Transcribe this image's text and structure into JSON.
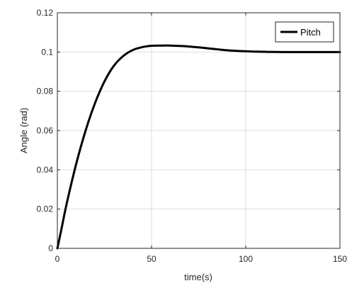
{
  "chart_data": {
    "type": "line",
    "xlabel": "time(s)",
    "ylabel": "Angle (rad)",
    "xlim": [
      0,
      150
    ],
    "ylim": [
      0,
      0.12
    ],
    "xticks": [
      0,
      50,
      100,
      150
    ],
    "yticks": [
      0,
      0.02,
      0.04,
      0.06,
      0.08,
      0.1,
      0.12
    ],
    "xtick_labels": [
      "0",
      "50",
      "100",
      "150"
    ],
    "ytick_labels": [
      "0",
      "0.02",
      "0.04",
      "0.06",
      "0.08",
      "0.1",
      "0.12"
    ],
    "grid": true,
    "legend_position": "top-right",
    "series": [
      {
        "name": "Pitch",
        "color": "#000000",
        "x": [
          0,
          2,
          5,
          10,
          15,
          20,
          25,
          30,
          35,
          40,
          45,
          50,
          55,
          60,
          65,
          70,
          80,
          90,
          100,
          110,
          120,
          130,
          140,
          150
        ],
        "y": [
          0,
          0.009,
          0.023,
          0.043,
          0.06,
          0.074,
          0.085,
          0.093,
          0.098,
          0.101,
          0.1025,
          0.1032,
          0.1033,
          0.1033,
          0.1031,
          0.1028,
          0.1019,
          0.1009,
          0.1004,
          0.1001,
          0.1,
          0.1,
          0.1,
          0.1
        ]
      }
    ]
  }
}
